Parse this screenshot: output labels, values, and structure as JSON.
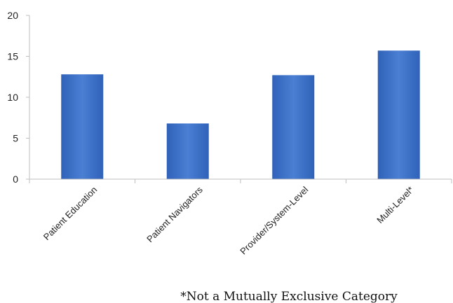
{
  "chart_data": {
    "type": "bar",
    "categories": [
      "Patient Education",
      "Patient Navigators",
      "Provider/System-Level",
      "Multi-Level*"
    ],
    "values": [
      12.8,
      6.8,
      12.7,
      15.7
    ],
    "ylim": [
      0,
      20
    ],
    "yticks": [
      0,
      5,
      10,
      15,
      20
    ],
    "ytick_labels": [
      "0",
      "5",
      "10",
      "15",
      "20"
    ],
    "grid": false,
    "legend": "none",
    "bar_color": "#4a7fd4",
    "bar_color_dark": "#2f62b8",
    "axis_color": "#bfbfbf"
  },
  "footnote": "*Not a Mutually Exclusive Category"
}
